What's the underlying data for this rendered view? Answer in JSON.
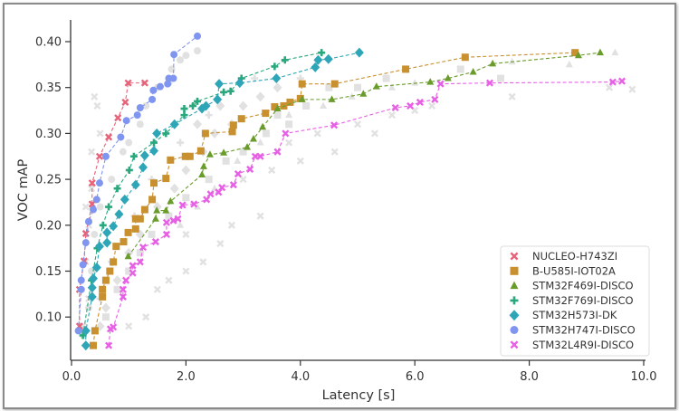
{
  "chart_data": {
    "type": "scatter",
    "xlabel": "Latency [s]",
    "ylabel": "VOC mAP",
    "xlim": [
      0,
      10
    ],
    "ylim": [
      0.053,
      0.424
    ],
    "xticks": [
      "0.0",
      "2.0",
      "4.0",
      "6.0",
      "8.0",
      "10.0"
    ],
    "xtick_values": [
      0,
      2,
      4,
      6,
      8,
      10
    ],
    "yticks": [
      "0.10",
      "0.15",
      "0.20",
      "0.25",
      "0.30",
      "0.35",
      "0.40"
    ],
    "ytick_values": [
      0.1,
      0.15,
      0.2,
      0.25,
      0.3,
      0.35,
      0.4
    ],
    "grid": false,
    "legend_position": "bottom-right",
    "series": [
      {
        "name": "NUCLEO-H743ZI",
        "marker": "x",
        "color": "#e8627a",
        "points": [
          [
            0.14,
            0.09
          ],
          [
            0.14,
            0.13
          ],
          [
            0.22,
            0.161
          ],
          [
            0.25,
            0.191
          ],
          [
            0.36,
            0.223
          ],
          [
            0.36,
            0.246
          ],
          [
            0.49,
            0.275
          ],
          [
            0.65,
            0.296
          ],
          [
            0.81,
            0.317
          ],
          [
            0.94,
            0.334
          ],
          [
            0.99,
            0.355
          ],
          [
            1.28,
            0.355
          ]
        ]
      },
      {
        "name": "B-U585I-IOT02A",
        "marker": "square",
        "color": "#c8902f",
        "points": [
          [
            0.38,
            0.069
          ],
          [
            0.41,
            0.085
          ],
          [
            0.54,
            0.122
          ],
          [
            0.54,
            0.13
          ],
          [
            0.6,
            0.14
          ],
          [
            0.67,
            0.15
          ],
          [
            0.73,
            0.16
          ],
          [
            0.78,
            0.177
          ],
          [
            0.91,
            0.182
          ],
          [
            0.99,
            0.192
          ],
          [
            1.12,
            0.196
          ],
          [
            1.12,
            0.207
          ],
          [
            1.2,
            0.207
          ],
          [
            1.28,
            0.217
          ],
          [
            1.41,
            0.228
          ],
          [
            1.44,
            0.246
          ],
          [
            1.65,
            0.251
          ],
          [
            1.73,
            0.271
          ],
          [
            1.99,
            0.275
          ],
          [
            2.07,
            0.275
          ],
          [
            2.26,
            0.281
          ],
          [
            2.34,
            0.3
          ],
          [
            2.81,
            0.302
          ],
          [
            2.83,
            0.309
          ],
          [
            2.97,
            0.316
          ],
          [
            3.39,
            0.322
          ],
          [
            3.55,
            0.329
          ],
          [
            3.71,
            0.33
          ],
          [
            3.82,
            0.334
          ],
          [
            4.0,
            0.338
          ],
          [
            4.03,
            0.354
          ],
          [
            4.6,
            0.354
          ],
          [
            5.84,
            0.37
          ],
          [
            6.88,
            0.383
          ],
          [
            8.8,
            0.388
          ]
        ]
      },
      {
        "name": "STM32F469I-DISCO",
        "marker": "triangle",
        "color": "#6a9c2c",
        "points": [
          [
            0.99,
            0.166
          ],
          [
            1.47,
            0.207
          ],
          [
            1.49,
            0.216
          ],
          [
            1.65,
            0.216
          ],
          [
            1.73,
            0.226
          ],
          [
            2.28,
            0.255
          ],
          [
            2.31,
            0.264
          ],
          [
            2.42,
            0.277
          ],
          [
            2.66,
            0.279
          ],
          [
            3.07,
            0.285
          ],
          [
            3.18,
            0.294
          ],
          [
            3.34,
            0.307
          ],
          [
            3.6,
            0.327
          ],
          [
            4.03,
            0.337
          ],
          [
            4.55,
            0.337
          ],
          [
            5.1,
            0.343
          ],
          [
            5.33,
            0.351
          ],
          [
            6.27,
            0.356
          ],
          [
            6.58,
            0.36
          ],
          [
            7.02,
            0.367
          ],
          [
            7.36,
            0.376
          ],
          [
            8.86,
            0.385
          ],
          [
            9.24,
            0.388
          ]
        ]
      },
      {
        "name": "STM32F769I-DISCO",
        "marker": "plus",
        "color": "#2aa77d",
        "points": [
          [
            0.2,
            0.08
          ],
          [
            0.35,
            0.14
          ],
          [
            0.45,
            0.175
          ],
          [
            0.55,
            0.2
          ],
          [
            0.65,
            0.22
          ],
          [
            0.8,
            0.24
          ],
          [
            1.01,
            0.26
          ],
          [
            1.09,
            0.275
          ],
          [
            1.44,
            0.29
          ],
          [
            1.65,
            0.3
          ],
          [
            1.97,
            0.32
          ],
          [
            1.97,
            0.327
          ],
          [
            2.12,
            0.33
          ],
          [
            2.2,
            0.335
          ],
          [
            2.66,
            0.345
          ],
          [
            2.78,
            0.346
          ],
          [
            2.97,
            0.36
          ],
          [
            3.55,
            0.373
          ],
          [
            3.73,
            0.38
          ],
          [
            4.37,
            0.388
          ]
        ]
      },
      {
        "name": "STM32H573I-DK",
        "marker": "diamond",
        "color": "#2fa6b8",
        "points": [
          [
            0.25,
            0.069
          ],
          [
            0.25,
            0.085
          ],
          [
            0.36,
            0.122
          ],
          [
            0.36,
            0.132
          ],
          [
            0.38,
            0.142
          ],
          [
            0.44,
            0.154
          ],
          [
            0.49,
            0.177
          ],
          [
            0.62,
            0.181
          ],
          [
            0.62,
            0.192
          ],
          [
            0.73,
            0.199
          ],
          [
            0.83,
            0.212
          ],
          [
            0.93,
            0.228
          ],
          [
            1.12,
            0.244
          ],
          [
            1.25,
            0.263
          ],
          [
            1.28,
            0.276
          ],
          [
            1.44,
            0.281
          ],
          [
            1.49,
            0.3
          ],
          [
            1.8,
            0.31
          ],
          [
            2.28,
            0.327
          ],
          [
            2.35,
            0.33
          ],
          [
            2.55,
            0.337
          ],
          [
            2.58,
            0.354
          ],
          [
            2.94,
            0.355
          ],
          [
            3.58,
            0.36
          ],
          [
            4.26,
            0.372
          ],
          [
            4.31,
            0.38
          ],
          [
            4.49,
            0.381
          ],
          [
            5.03,
            0.388
          ]
        ]
      },
      {
        "name": "STM32H747I-DISCO",
        "marker": "circle",
        "color": "#7f95ef",
        "points": [
          [
            0.12,
            0.085
          ],
          [
            0.17,
            0.13
          ],
          [
            0.17,
            0.14
          ],
          [
            0.2,
            0.157
          ],
          [
            0.25,
            0.181
          ],
          [
            0.3,
            0.204
          ],
          [
            0.38,
            0.217
          ],
          [
            0.44,
            0.228
          ],
          [
            0.49,
            0.246
          ],
          [
            0.6,
            0.275
          ],
          [
            0.86,
            0.296
          ],
          [
            0.96,
            0.314
          ],
          [
            1.15,
            0.32
          ],
          [
            1.2,
            0.328
          ],
          [
            1.41,
            0.337
          ],
          [
            1.43,
            0.347
          ],
          [
            1.55,
            0.351
          ],
          [
            1.68,
            0.354
          ],
          [
            1.7,
            0.36
          ],
          [
            1.78,
            0.36
          ],
          [
            1.79,
            0.386
          ],
          [
            2.2,
            0.406
          ]
        ]
      },
      {
        "name": "STM32L4R9I-DISCO",
        "marker": "x",
        "color": "#e75fe5",
        "points": [
          [
            0.65,
            0.069
          ],
          [
            0.68,
            0.087
          ],
          [
            0.73,
            0.089
          ],
          [
            0.9,
            0.122
          ],
          [
            0.9,
            0.13
          ],
          [
            0.95,
            0.14
          ],
          [
            1.07,
            0.148
          ],
          [
            1.07,
            0.156
          ],
          [
            1.2,
            0.16
          ],
          [
            1.25,
            0.176
          ],
          [
            1.47,
            0.182
          ],
          [
            1.66,
            0.19
          ],
          [
            1.66,
            0.203
          ],
          [
            1.78,
            0.205
          ],
          [
            1.86,
            0.207
          ],
          [
            1.94,
            0.222
          ],
          [
            2.14,
            0.223
          ],
          [
            2.36,
            0.228
          ],
          [
            2.43,
            0.234
          ],
          [
            2.57,
            0.236
          ],
          [
            2.63,
            0.241
          ],
          [
            2.83,
            0.244
          ],
          [
            2.91,
            0.256
          ],
          [
            3.12,
            0.261
          ],
          [
            3.21,
            0.275
          ],
          [
            3.3,
            0.275
          ],
          [
            3.6,
            0.28
          ],
          [
            3.74,
            0.3
          ],
          [
            4.59,
            0.309
          ],
          [
            5.66,
            0.328
          ],
          [
            5.92,
            0.33
          ],
          [
            6.09,
            0.334
          ],
          [
            6.35,
            0.337
          ],
          [
            6.45,
            0.354
          ],
          [
            7.31,
            0.355
          ],
          [
            9.46,
            0.356
          ],
          [
            9.62,
            0.357
          ]
        ]
      }
    ],
    "dominated": {
      "color": "#bdbdbd",
      "points": [
        [
          "x",
          0.4,
          0.34
        ],
        [
          "x",
          0.45,
          0.33
        ],
        [
          "x",
          0.5,
          0.3
        ],
        [
          "x",
          0.35,
          0.28
        ],
        [
          "x",
          0.3,
          0.2
        ],
        [
          "x",
          0.25,
          0.16
        ],
        [
          "x",
          0.3,
          0.12
        ],
        [
          "x",
          0.2,
          0.09
        ],
        [
          "x",
          0.35,
          0.24
        ],
        [
          "x",
          0.25,
          0.22
        ],
        [
          "circle",
          1.9,
          0.38
        ],
        [
          "circle",
          2.0,
          0.385
        ],
        [
          "circle",
          2.2,
          0.39
        ],
        [
          "circle",
          1.75,
          0.37
        ],
        [
          "circle",
          1.7,
          0.355
        ],
        [
          "circle",
          1.5,
          0.35
        ],
        [
          "circle",
          1.3,
          0.33
        ],
        [
          "circle",
          1.2,
          0.31
        ],
        [
          "circle",
          1.0,
          0.29
        ],
        [
          "circle",
          0.9,
          0.28
        ],
        [
          "circle",
          0.7,
          0.25
        ],
        [
          "circle",
          0.5,
          0.22
        ],
        [
          "circle",
          0.4,
          0.19
        ],
        [
          "circle",
          0.35,
          0.15
        ],
        [
          "circle",
          0.3,
          0.11
        ],
        [
          "circle",
          0.2,
          0.08
        ],
        [
          "diamond",
          3.0,
          0.33
        ],
        [
          "diamond",
          3.3,
          0.34
        ],
        [
          "diamond",
          2.8,
          0.31
        ],
        [
          "diamond",
          2.5,
          0.3
        ],
        [
          "diamond",
          2.3,
          0.28
        ],
        [
          "diamond",
          2.0,
          0.26
        ],
        [
          "diamond",
          1.8,
          0.24
        ],
        [
          "diamond",
          1.5,
          0.22
        ],
        [
          "diamond",
          1.2,
          0.19
        ],
        [
          "diamond",
          1.0,
          0.17
        ],
        [
          "diamond",
          0.8,
          0.14
        ],
        [
          "diamond",
          0.6,
          0.11
        ],
        [
          "diamond",
          0.5,
          0.09
        ],
        [
          "diamond",
          3.6,
          0.35
        ],
        [
          "diamond",
          2.6,
          0.33
        ],
        [
          "diamond",
          2.2,
          0.31
        ],
        [
          "plus",
          4.0,
          0.36
        ],
        [
          "plus",
          3.2,
          0.36
        ],
        [
          "plus",
          2.4,
          0.32
        ],
        [
          "plus",
          1.9,
          0.29
        ],
        [
          "plus",
          1.4,
          0.25
        ],
        [
          "plus",
          1.1,
          0.21
        ],
        [
          "plus",
          0.7,
          0.16
        ],
        [
          "plus",
          0.5,
          0.12
        ],
        [
          "square",
          4.5,
          0.35
        ],
        [
          "square",
          4.1,
          0.33
        ],
        [
          "square",
          3.8,
          0.31
        ],
        [
          "square",
          3.4,
          0.3
        ],
        [
          "square",
          3.0,
          0.28
        ],
        [
          "square",
          2.7,
          0.27
        ],
        [
          "square",
          2.4,
          0.25
        ],
        [
          "square",
          2.0,
          0.23
        ],
        [
          "square",
          1.7,
          0.21
        ],
        [
          "square",
          1.4,
          0.19
        ],
        [
          "square",
          1.2,
          0.17
        ],
        [
          "square",
          1.0,
          0.15
        ],
        [
          "square",
          0.8,
          0.13
        ],
        [
          "square",
          0.6,
          0.1
        ],
        [
          "square",
          5.5,
          0.36
        ],
        [
          "square",
          6.8,
          0.37
        ],
        [
          "square",
          7.5,
          0.36
        ],
        [
          "square",
          5.0,
          0.35
        ],
        [
          "square",
          3.6,
          0.32
        ],
        [
          "triangle",
          9.5,
          0.388
        ],
        [
          "triangle",
          8.7,
          0.375
        ],
        [
          "triangle",
          7.7,
          0.378
        ],
        [
          "triangle",
          6.0,
          0.355
        ],
        [
          "triangle",
          5.6,
          0.35
        ],
        [
          "triangle",
          4.9,
          0.34
        ],
        [
          "triangle",
          4.4,
          0.33
        ],
        [
          "triangle",
          3.8,
          0.32
        ],
        [
          "triangle",
          3.3,
          0.29
        ],
        [
          "triangle",
          2.9,
          0.27
        ],
        [
          "triangle",
          2.5,
          0.24
        ],
        [
          "triangle",
          2.2,
          0.22
        ],
        [
          "triangle",
          1.9,
          0.2
        ],
        [
          "x",
          9.4,
          0.35
        ],
        [
          "x",
          9.8,
          0.348
        ],
        [
          "x",
          7.7,
          0.34
        ],
        [
          "x",
          6.3,
          0.33
        ],
        [
          "x",
          6.0,
          0.325
        ],
        [
          "x",
          5.6,
          0.32
        ],
        [
          "x",
          5.3,
          0.3
        ],
        [
          "x",
          4.6,
          0.28
        ],
        [
          "x",
          4.0,
          0.27
        ],
        [
          "x",
          3.5,
          0.26
        ],
        [
          "x",
          3.0,
          0.25
        ],
        [
          "x",
          3.3,
          0.21
        ],
        [
          "x",
          2.8,
          0.2
        ],
        [
          "x",
          2.6,
          0.18
        ],
        [
          "x",
          2.0,
          0.19
        ],
        [
          "x",
          2.3,
          0.16
        ],
        [
          "x",
          2.0,
          0.15
        ],
        [
          "x",
          1.7,
          0.14
        ],
        [
          "x",
          1.5,
          0.13
        ],
        [
          "x",
          1.3,
          0.1
        ],
        [
          "x",
          1.0,
          0.09
        ],
        [
          "x",
          4.3,
          0.3
        ],
        [
          "x",
          5.0,
          0.31
        ],
        [
          "x",
          3.8,
          0.29
        ]
      ]
    }
  }
}
